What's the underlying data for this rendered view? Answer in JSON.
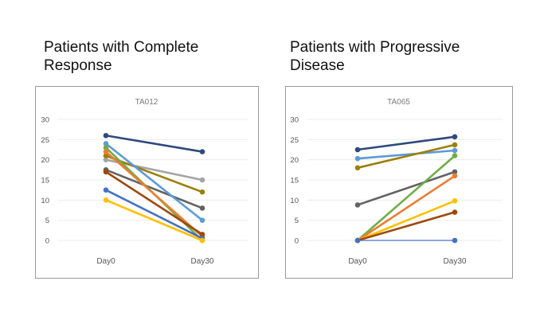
{
  "headings": [
    "Patients with Complete Response",
    "Patients with Progressive Disease"
  ],
  "chart_data": [
    {
      "type": "line",
      "title": "TA012",
      "categories": [
        "Day0",
        "Day30"
      ],
      "ylim": [
        0,
        30
      ],
      "yticks": [
        0,
        5,
        10,
        15,
        20,
        25,
        30
      ],
      "grid": true,
      "series": [
        {
          "color": "#2e4a7d",
          "values": [
            26,
            22
          ]
        },
        {
          "color": "#a5a5a5",
          "values": [
            20,
            15
          ]
        },
        {
          "color": "#9c7f0a",
          "values": [
            21,
            12
          ]
        },
        {
          "color": "#636363",
          "values": [
            17.5,
            8
          ]
        },
        {
          "color": "#5b9bd5",
          "values": [
            24,
            5
          ]
        },
        {
          "color": "#70ad47",
          "values": [
            23,
            0
          ]
        },
        {
          "color": "#ed7d31",
          "values": [
            22,
            1
          ]
        },
        {
          "color": "#9e480e",
          "values": [
            17,
            1.5
          ]
        },
        {
          "color": "#4472c4",
          "values": [
            12.5,
            0.5
          ]
        },
        {
          "color": "#ffc000",
          "values": [
            10,
            0
          ]
        }
      ]
    },
    {
      "type": "line",
      "title": "TA065",
      "categories": [
        "Day0",
        "Day30"
      ],
      "ylim": [
        0,
        30
      ],
      "yticks": [
        0,
        5,
        10,
        15,
        20,
        25,
        30
      ],
      "grid": true,
      "series": [
        {
          "color": "#2e4a7d",
          "values": [
            22.5,
            25.7
          ]
        },
        {
          "color": "#5b9bd5",
          "values": [
            20.3,
            22.3
          ]
        },
        {
          "color": "#9c7f0a",
          "values": [
            18,
            23.7
          ]
        },
        {
          "color": "#636363",
          "values": [
            8.8,
            17
          ]
        },
        {
          "color": "#70ad47",
          "values": [
            0,
            21
          ]
        },
        {
          "color": "#ed7d31",
          "values": [
            0,
            16
          ]
        },
        {
          "color": "#ffc000",
          "values": [
            0,
            9.8
          ]
        },
        {
          "color": "#9e480e",
          "values": [
            0,
            7
          ]
        },
        {
          "color": "#4472c4",
          "values": [
            0,
            0
          ]
        }
      ]
    }
  ]
}
